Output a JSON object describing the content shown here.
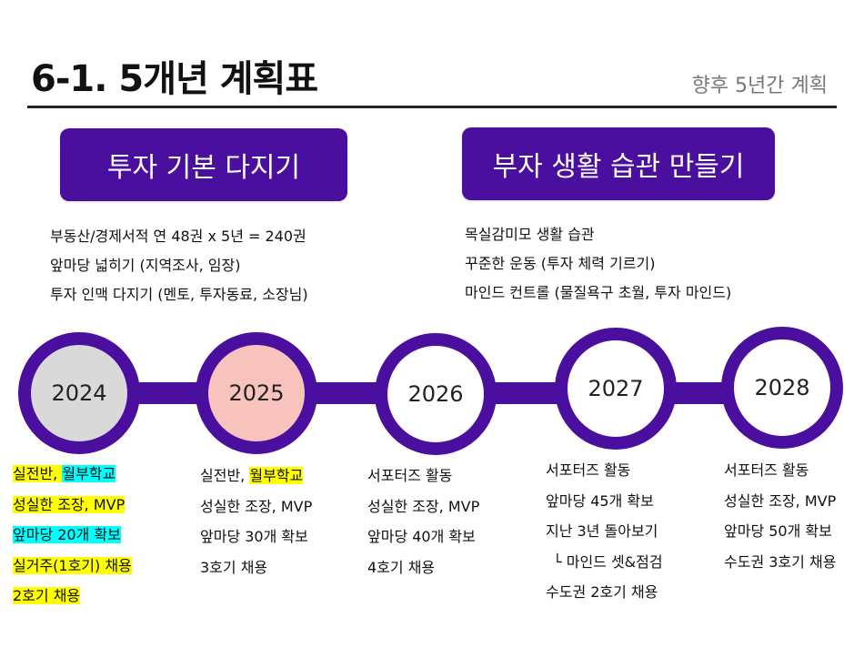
{
  "header": {
    "title": "6-1. 5개년 계획표",
    "subtitle": "향후 5년간 계획"
  },
  "goals": [
    {
      "heading": "투자 기본 다지기",
      "items": [
        "부동산/경제서적  연 48권 x 5년 = 240권",
        "앞마당 넓히기 (지역조사, 임장)",
        "투자 인맥 다지기 (멘토, 투자동료, 소장님)"
      ]
    },
    {
      "heading": "부자 생활 습관 만들기",
      "items": [
        "목실감미모 생활 습관",
        "꾸준한 운동 (투자 체력 기르기)",
        "마인드 컨트롤 (물질욕구 초월, 투자 마인드)"
      ]
    }
  ],
  "timeline": {
    "years": [
      {
        "label": "2024",
        "fill": "#d9d9d9"
      },
      {
        "label": "2025",
        "fill": "#f9c3bd"
      },
      {
        "label": "2026",
        "fill": "#ffffff"
      },
      {
        "label": "2027",
        "fill": "#ffffff"
      },
      {
        "label": "2028",
        "fill": "#ffffff"
      }
    ],
    "plans": [
      [
        "실전반",
        ", ",
        "월부학교",
        "성실한 조장, MVP",
        "앞마당 20개 확보",
        "실거주(1호기) 채용",
        "2호기 채용"
      ],
      [
        "실전반, ",
        "월부학교",
        "성실한 조장, MVP",
        "앞마당 30개 확보",
        "3호기 채용"
      ],
      [
        "서포터즈 활동",
        "성실한 조장, MVP",
        "앞마당 40개 확보",
        "4호기 채용"
      ],
      [
        "서포터즈 활동",
        "앞마당 45개 확보",
        "지난 3년 돌아보기",
        "└ 마인드 셋&점검",
        "수도권 2호기 채용"
      ],
      [
        "서포터즈 활동",
        "성실한 조장, MVP",
        "앞마당 50개 확보",
        "수도권 3호기 채용"
      ]
    ]
  },
  "colors": {
    "accent": "#4b0f9f",
    "highlight_yellow": "#ffff00",
    "highlight_cyan": "#00ffff"
  }
}
